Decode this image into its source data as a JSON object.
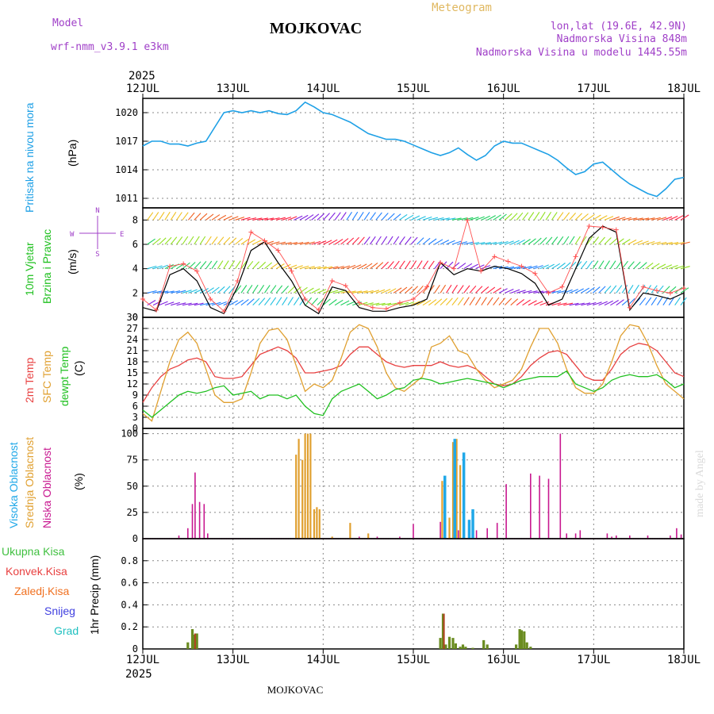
{
  "header": {
    "model_label": "Model",
    "model_name": "wrf-nmm_v3.9.1 e3km",
    "location": "MOJKOVAC",
    "product": "Meteogram",
    "lonlat": "lon,lat (19.6E, 42.9N)",
    "elevation": "Nadmorska Visina 848m",
    "model_elevation": "Nadmorska Visina u modelu 1445.55m",
    "footer_location": "MOJKOVAC",
    "credit": "made by Angel"
  },
  "colors": {
    "pressure": "#1ea0e6",
    "temp2m": "#e84040",
    "sfc": "#e0a030",
    "dew": "#20c020",
    "high_cloud": "#20a8e8",
    "mid_cloud": "#e0a030",
    "low_cloud": "#c81890",
    "precip_total": "#40c040",
    "precip_conv": "#e84040",
    "snow": "#4040e0",
    "freezing": "#f07020",
    "hail": "#20c0c0",
    "wind_mean": "#000000",
    "wind_gust": "#ff5050"
  },
  "chart_data": [
    {
      "type": "line",
      "id": "pressure",
      "title": "Pritisak na nivou mora",
      "ylabel": "(hPa)",
      "ylim": [
        1010,
        1021.5
      ],
      "yticks": [
        1011,
        1014,
        1017,
        1020
      ],
      "x_days": [
        0,
        0.1,
        0.2,
        0.3,
        0.4,
        0.5,
        0.6,
        0.7,
        0.8,
        0.9,
        1.0,
        1.1,
        1.2,
        1.3,
        1.4,
        1.5,
        1.6,
        1.7,
        1.8,
        1.9,
        2.0,
        2.1,
        2.2,
        2.3,
        2.4,
        2.5,
        2.6,
        2.7,
        2.8,
        2.9,
        3.0,
        3.1,
        3.2,
        3.3,
        3.4,
        3.5,
        3.6,
        3.7,
        3.8,
        3.9,
        4.0,
        4.1,
        4.2,
        4.3,
        4.4,
        4.5,
        4.6,
        4.7,
        4.8,
        4.9,
        5.0,
        5.1,
        5.2,
        5.3,
        5.4,
        5.5,
        5.6,
        5.7,
        5.8,
        5.9,
        6.0
      ],
      "values": [
        1016.5,
        1017.0,
        1017.0,
        1016.7,
        1016.7,
        1016.5,
        1016.8,
        1017.0,
        1018.5,
        1020.0,
        1020.2,
        1020.0,
        1020.2,
        1020.0,
        1020.2,
        1019.9,
        1019.8,
        1020.2,
        1021.1,
        1020.6,
        1020.0,
        1019.8,
        1019.4,
        1019.0,
        1018.4,
        1017.8,
        1017.5,
        1017.2,
        1017.2,
        1017.0,
        1016.6,
        1016.2,
        1015.8,
        1015.5,
        1015.8,
        1016.3,
        1015.6,
        1015.0,
        1015.5,
        1016.5,
        1017.0,
        1016.8,
        1016.8,
        1016.4,
        1016.0,
        1015.6,
        1015.0,
        1014.2,
        1013.5,
        1013.8,
        1014.6,
        1014.8,
        1014.0,
        1013.2,
        1012.5,
        1012.0,
        1011.5,
        1011.2,
        1012.0,
        1013.0,
        1013.2
      ]
    },
    {
      "type": "line",
      "id": "wind",
      "title": "10m Vjetar",
      "subtitle": "Brzina i Pravac",
      "ylabel": "(m/s)",
      "ylim": [
        0,
        9
      ],
      "yticks": [
        0,
        2,
        4,
        6,
        8
      ],
      "compass": {
        "n": "N",
        "s": "S",
        "w": "W",
        "e": "E"
      },
      "barb_levels": [
        1,
        2,
        4,
        6,
        8
      ],
      "x_days": [
        0,
        0.15,
        0.3,
        0.45,
        0.6,
        0.75,
        0.9,
        1.05,
        1.2,
        1.35,
        1.5,
        1.65,
        1.8,
        1.95,
        2.1,
        2.25,
        2.4,
        2.55,
        2.7,
        2.85,
        3.0,
        3.15,
        3.3,
        3.45,
        3.6,
        3.75,
        3.9,
        4.05,
        4.2,
        4.35,
        4.5,
        4.65,
        4.8,
        4.95,
        5.1,
        5.25,
        5.4,
        5.55,
        5.7,
        5.85,
        6.0
      ],
      "mean": [
        0.8,
        0.5,
        3.5,
        4.0,
        3.0,
        0.8,
        0.3,
        2.5,
        5.5,
        6.2,
        4.5,
        3.0,
        1.0,
        0.3,
        2.5,
        2.2,
        0.8,
        0.5,
        0.5,
        0.8,
        1.0,
        1.5,
        4.5,
        3.5,
        4.0,
        3.8,
        4.2,
        4.0,
        3.6,
        2.8,
        1.0,
        1.5,
        4.0,
        6.5,
        7.5,
        7.0,
        0.6,
        2.0,
        1.8,
        1.5,
        2.0
      ],
      "gust": [
        1.5,
        0.6,
        4.2,
        4.4,
        3.8,
        1.5,
        0.5,
        3.0,
        7.0,
        6.3,
        5.5,
        3.8,
        1.5,
        0.6,
        3.0,
        2.6,
        1.2,
        0.8,
        0.7,
        1.2,
        1.5,
        2.5,
        4.5,
        4.0,
        8.0,
        3.8,
        5.0,
        4.6,
        4.2,
        3.6,
        2.0,
        2.5,
        5.0,
        7.5,
        7.4,
        7.2,
        0.8,
        2.5,
        2.2,
        2.0,
        2.4
      ]
    },
    {
      "type": "line",
      "id": "temperature",
      "title": "2m Temp",
      "series_labels": [
        "2m Temp",
        "SFC Temp",
        "dewpt Temp"
      ],
      "ylabel": "(C)",
      "ylim": [
        0,
        30
      ],
      "yticks": [
        0,
        3,
        6,
        9,
        12,
        15,
        18,
        21,
        24,
        27,
        30
      ],
      "x_days": [
        0,
        0.1,
        0.2,
        0.3,
        0.4,
        0.5,
        0.6,
        0.7,
        0.8,
        0.9,
        1.0,
        1.1,
        1.2,
        1.3,
        1.4,
        1.5,
        1.6,
        1.7,
        1.8,
        1.9,
        2.0,
        2.1,
        2.2,
        2.3,
        2.4,
        2.5,
        2.6,
        2.7,
        2.8,
        2.9,
        3.0,
        3.1,
        3.2,
        3.3,
        3.4,
        3.5,
        3.6,
        3.7,
        3.8,
        3.9,
        4.0,
        4.1,
        4.2,
        4.3,
        4.4,
        4.5,
        4.6,
        4.7,
        4.8,
        4.9,
        5.0,
        5.1,
        5.2,
        5.3,
        5.4,
        5.5,
        5.6,
        5.7,
        5.8,
        5.9,
        6.0
      ],
      "series": [
        {
          "name": "2m Temp",
          "values": [
            7,
            11,
            14,
            16,
            17,
            18.5,
            19,
            18,
            14,
            13.5,
            13.5,
            14,
            17,
            20,
            21,
            22,
            21,
            19,
            15,
            15,
            15.5,
            16,
            17,
            20,
            22,
            22,
            20,
            18,
            17,
            16.5,
            17,
            17,
            17,
            18,
            17,
            16.5,
            17,
            16,
            14,
            12,
            11.5,
            12,
            14,
            17,
            19,
            20.5,
            21,
            20,
            17,
            14,
            13,
            13,
            16,
            20,
            22,
            23,
            22.5,
            21,
            18,
            15,
            14
          ]
        },
        {
          "name": "SFC Temp",
          "values": [
            4,
            2,
            10,
            18,
            24,
            26,
            23,
            16,
            9,
            7,
            7,
            8,
            15,
            23,
            26.5,
            27,
            24,
            17,
            10,
            12,
            11,
            13,
            19,
            26,
            28,
            27,
            22,
            15,
            11,
            10,
            12,
            14,
            22,
            23,
            25,
            21,
            20,
            16,
            13,
            11,
            12,
            13,
            16,
            22,
            27,
            27,
            23,
            16,
            11,
            9.5,
            9.5,
            12,
            18,
            25,
            28,
            27.5,
            23,
            17,
            12,
            10,
            8
          ]
        },
        {
          "name": "dewpt Temp",
          "values": [
            5,
            3,
            5,
            7,
            9,
            10,
            9.5,
            10,
            11,
            11.5,
            9,
            9.5,
            10,
            8,
            9,
            9,
            8,
            9,
            6,
            4,
            3.5,
            8,
            10,
            11,
            12,
            10,
            8,
            9,
            10.5,
            11,
            13,
            13.5,
            13,
            12,
            12.5,
            13,
            13.5,
            13,
            12.5,
            12,
            11,
            12,
            13,
            13.5,
            14,
            14,
            14,
            15.5,
            12,
            11,
            10,
            11,
            13,
            14,
            14.5,
            14,
            14,
            14.5,
            13,
            11,
            12
          ]
        }
      ]
    },
    {
      "type": "bar",
      "id": "cloud",
      "series_labels": [
        "Visoka Oblacnost",
        "Srednja Oblacnost",
        "Niska Oblacnost"
      ],
      "ylabel": "(%)",
      "ylim": [
        0,
        105
      ],
      "yticks": [
        0,
        25,
        50,
        75,
        100
      ],
      "low": {
        "x_days": [
          0.4,
          0.5,
          0.55,
          0.58,
          0.63,
          0.68,
          0.72,
          2.4,
          2.6,
          2.85,
          3.0,
          3.3,
          3.5,
          3.7,
          3.82,
          3.93,
          4.03,
          4.3,
          4.4,
          4.5,
          4.63,
          4.7,
          4.8,
          4.85,
          5.15,
          5.2,
          5.25,
          5.4,
          5.6,
          5.85,
          5.92,
          5.97
        ],
        "values": [
          3,
          10,
          33,
          63,
          35,
          33,
          5,
          2,
          2,
          2,
          14,
          16,
          8,
          8,
          10,
          15,
          52,
          62,
          60,
          57,
          100,
          5,
          5,
          8,
          5,
          2,
          3,
          3,
          3,
          3,
          10,
          4
        ]
      },
      "mid": {
        "x_days": [
          1.7,
          1.73,
          1.77,
          1.8,
          1.83,
          1.86,
          1.9,
          1.93,
          1.96,
          2.1,
          2.3,
          2.5,
          3.32,
          3.4,
          3.44,
          3.48,
          3.52,
          3.56
        ],
        "values": [
          80,
          95,
          75,
          100,
          100,
          100,
          28,
          30,
          28,
          2,
          15,
          5,
          55,
          20,
          92,
          95,
          70,
          15
        ]
      },
      "high": {
        "x_days": [
          3.35,
          3.46,
          3.56,
          3.62,
          3.66
        ],
        "values": [
          60,
          95,
          82,
          18,
          28
        ]
      }
    },
    {
      "type": "bar",
      "id": "precip",
      "series_labels": [
        "Ukupna Kisa",
        "Konvek.Kisa",
        "Zaledj.Kisa",
        "Snijeg",
        "Grad"
      ],
      "ylabel": "1hr Precip (mm)",
      "ylim": [
        0,
        1.0
      ],
      "yticks": [
        0,
        0.2,
        0.4,
        0.6,
        0.8
      ],
      "x_days": [
        0.5,
        0.55,
        0.57,
        0.6,
        3.3,
        3.33,
        3.36,
        3.4,
        3.44,
        3.47,
        3.52,
        3.55,
        3.58,
        3.66,
        3.78,
        3.82,
        4.14,
        4.18,
        4.2,
        4.23,
        4.26,
        4.3
      ],
      "values": [
        0.06,
        0.18,
        0.13,
        0.14,
        0.1,
        0.32,
        0.04,
        0.11,
        0.1,
        0.05,
        0.02,
        0.04,
        0.02,
        0.01,
        0.08,
        0.04,
        0.04,
        0.18,
        0.17,
        0.16,
        0.06,
        0.02
      ],
      "red_x_days": [
        0.58,
        3.34
      ],
      "red_values": [
        0.14,
        0.32
      ]
    }
  ],
  "x_axis": {
    "year": "2025",
    "day_labels": [
      "12JUL",
      "13JUL",
      "14JUL",
      "15JUL",
      "16JUL",
      "17JUL",
      "18JUL"
    ]
  }
}
